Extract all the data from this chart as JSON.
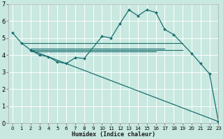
{
  "xlabel": "Humidex (Indice chaleur)",
  "ylabel": "",
  "xlim": [
    -0.5,
    23
  ],
  "ylim": [
    0,
    7
  ],
  "xticks": [
    0,
    1,
    2,
    3,
    4,
    5,
    6,
    7,
    8,
    9,
    10,
    11,
    12,
    13,
    14,
    15,
    16,
    17,
    18,
    19,
    20,
    21,
    22,
    23
  ],
  "yticks": [
    0,
    1,
    2,
    3,
    4,
    5,
    6,
    7
  ],
  "bg_color": "#c8e8e0",
  "grid_color": "#ffffff",
  "line_color": "#1a6e6e",
  "series": {
    "main": {
      "x": [
        0,
        1,
        2,
        3,
        4,
        5,
        6,
        7,
        8,
        10,
        11,
        12,
        13,
        14,
        15,
        16,
        17,
        18,
        20,
        21,
        22,
        23
      ],
      "y": [
        5.3,
        4.7,
        4.3,
        4.0,
        3.9,
        3.6,
        3.5,
        3.85,
        3.8,
        5.1,
        5.0,
        5.85,
        6.65,
        6.3,
        6.65,
        6.5,
        5.5,
        5.2,
        4.1,
        3.5,
        2.9,
        0.1
      ]
    },
    "flat1": {
      "x": [
        1,
        19
      ],
      "y": [
        4.7,
        4.7
      ]
    },
    "flat2": {
      "x": [
        2,
        17
      ],
      "y": [
        4.38,
        4.38
      ]
    },
    "flat3": {
      "x": [
        2,
        19
      ],
      "y": [
        4.3,
        4.3
      ]
    },
    "flat4": {
      "x": [
        2,
        16
      ],
      "y": [
        4.22,
        4.22
      ]
    },
    "diagonal": {
      "x": [
        2,
        23
      ],
      "y": [
        4.3,
        0.1
      ]
    }
  }
}
